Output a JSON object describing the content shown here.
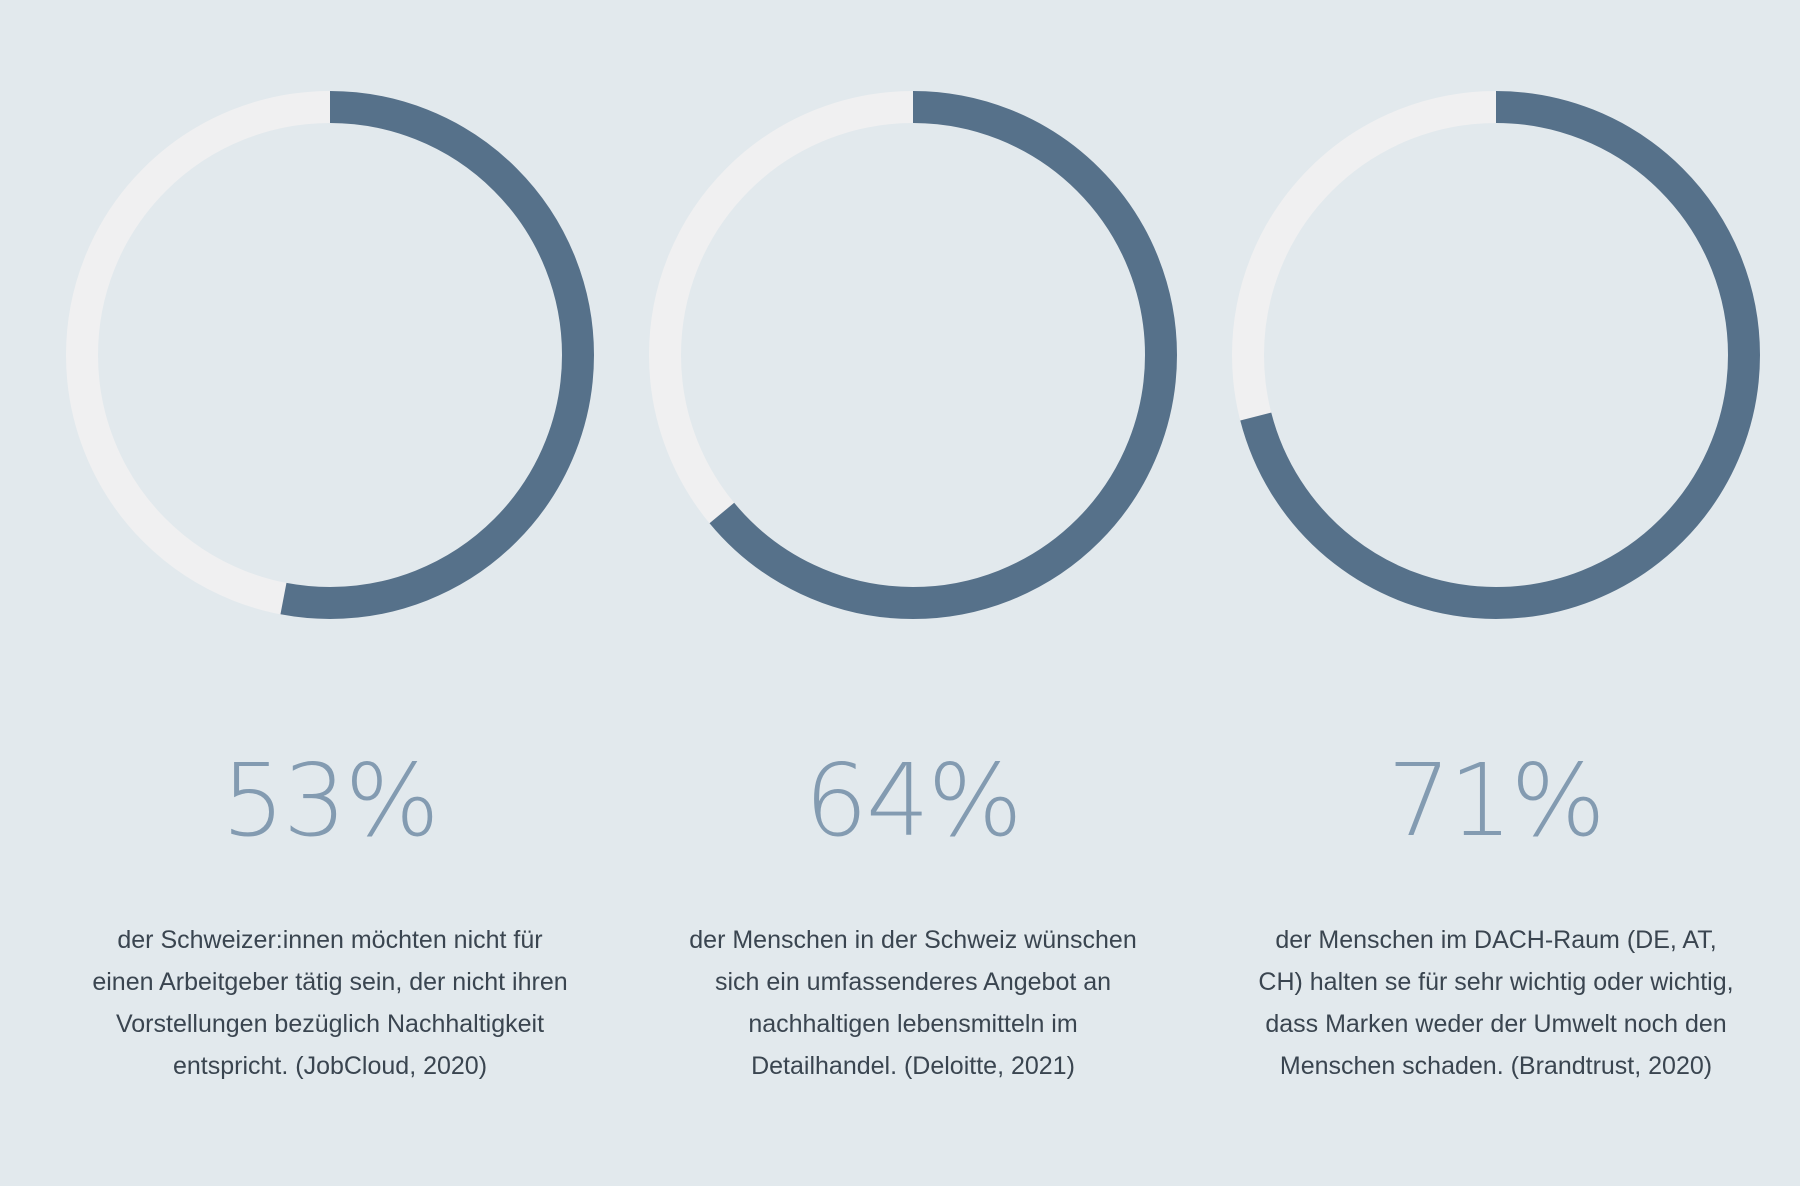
{
  "colors": {
    "background": "#e2e9ed",
    "track": "#f0f0f1",
    "progress": "#56718a",
    "percent_text": "#839bb1",
    "body_text": "#3a4550"
  },
  "chart_data": [
    {
      "type": "pie",
      "value": 53,
      "max": 100,
      "label": "53%",
      "description": "der Schweizer:innen möchten nicht für einen Arbeitgeber tätig sein, der nicht ihren Vorstellungen bezüglich Nachhaltigkeit entspricht. (JobCloud, 2020)"
    },
    {
      "type": "pie",
      "value": 64,
      "max": 100,
      "label": "64%",
      "description": "der Menschen in der Schweiz wünschen sich ein umfassenderes Angebot an nachhaltigen lebensmitteln im Detailhandel. (Deloitte, 2021)"
    },
    {
      "type": "pie",
      "value": 71,
      "max": 100,
      "label": "71%",
      "description": "der Menschen im DACH-Raum (DE, AT, CH) halten se für sehr wichtig oder wichtig, dass Marken weder der Umwelt noch den Menschen schaden. (Brandtrust, 2020)"
    }
  ]
}
